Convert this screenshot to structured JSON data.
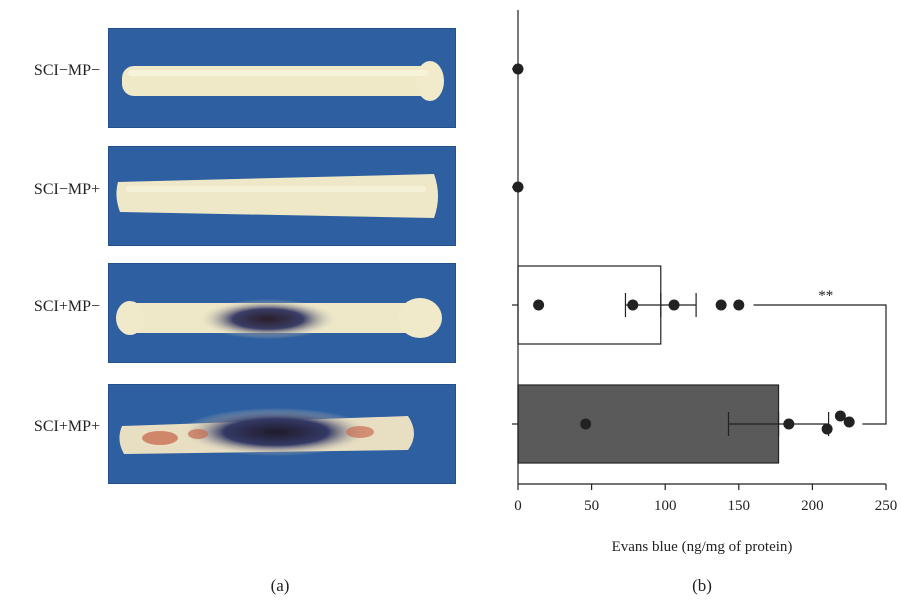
{
  "panel_a": {
    "label": "(a)",
    "specimens": [
      {
        "name": "SCI−MP−"
      },
      {
        "name": "SCI−MP+"
      },
      {
        "name": "SCI+MP−"
      },
      {
        "name": "SCI+MP+"
      }
    ]
  },
  "panel_b": {
    "label": "(b)"
  },
  "chart_data": {
    "type": "bar",
    "orientation": "horizontal",
    "categories": [
      "SCI−MP−",
      "SCI−MP+",
      "SCI+MP−",
      "SCI+MP+"
    ],
    "values": [
      0,
      0,
      97,
      177
    ],
    "errors": [
      0,
      0,
      24,
      34
    ],
    "points": [
      [
        0
      ],
      [
        0
      ],
      [
        14,
        78,
        106,
        138,
        150
      ],
      [
        46,
        184,
        210,
        219,
        225
      ]
    ],
    "bar_colors": [
      "#ffffff",
      "#ffffff",
      "#ffffff",
      "#5a5a5a"
    ],
    "xlabel": "Evans blue (ng/mg of protein)",
    "xlim": [
      0,
      250
    ],
    "xticks": [
      0,
      50,
      100,
      150,
      200,
      250
    ],
    "significance": {
      "between": [
        "SCI+MP−",
        "SCI+MP+"
      ],
      "label": "**"
    },
    "grid": false
  }
}
